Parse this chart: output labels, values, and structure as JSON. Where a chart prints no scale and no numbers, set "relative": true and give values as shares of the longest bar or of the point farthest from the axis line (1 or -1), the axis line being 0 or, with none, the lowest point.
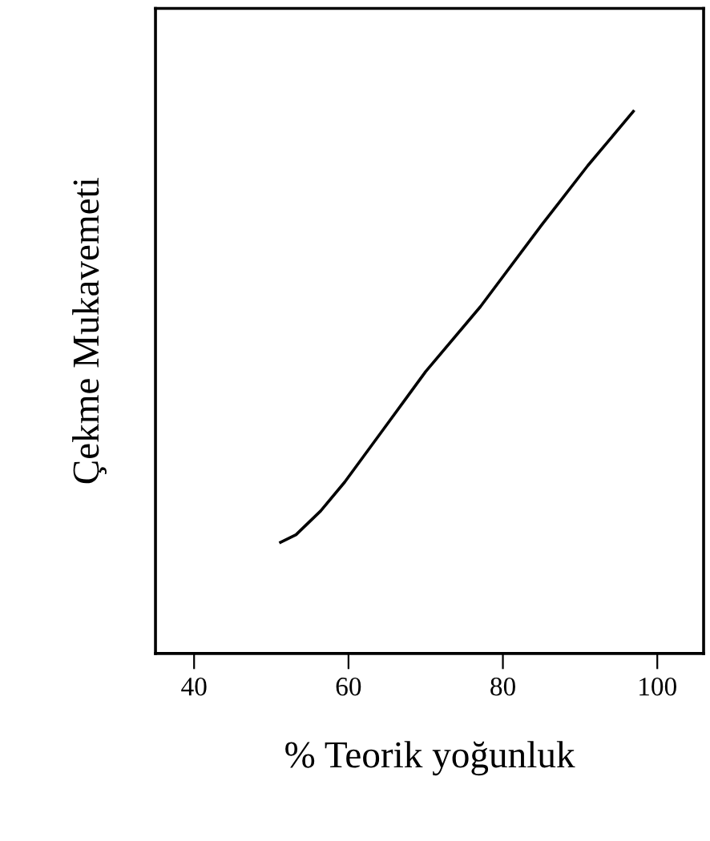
{
  "chart_data": {
    "type": "line",
    "xlabel": "% Teorik yoğunluk",
    "ylabel": "Çekme Mukavemeti",
    "relative": true,
    "x": [
      51.2,
      53.2,
      56.4,
      59.5,
      64.6,
      70.0,
      77.1,
      85.0,
      91.0,
      96.9
    ],
    "series": [
      {
        "color": "#000000",
        "values": [
          0.205,
          0.219,
          0.263,
          0.316,
          0.415,
          0.52,
          0.64,
          0.79,
          0.9,
          1
        ]
      }
    ],
    "xlim": [
      35,
      106
    ],
    "xticks": [
      40,
      60,
      80,
      100
    ],
    "tick_labels": "x",
    "grid": false,
    "legend": false,
    "marker": "none",
    "line_style": "solid"
  }
}
